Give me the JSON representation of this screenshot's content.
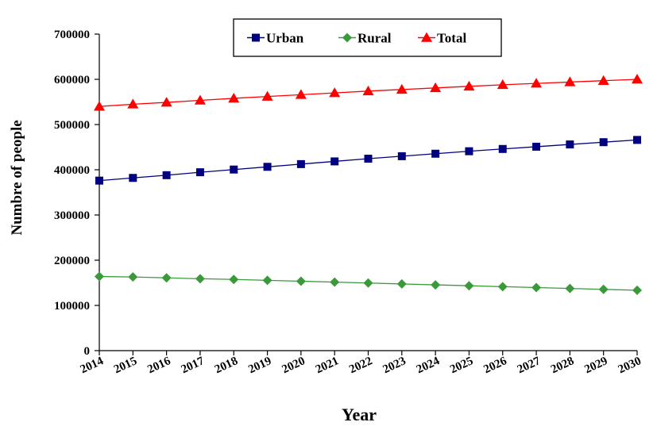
{
  "chart_data": {
    "type": "line",
    "title": "",
    "xlabel": "Year",
    "ylabel": "Numbre of people",
    "x": [
      "2014",
      "2015",
      "2016",
      "2017",
      "2018",
      "2019",
      "2020",
      "2021",
      "2022",
      "2023",
      "2024",
      "2025",
      "2026",
      "2027",
      "2028",
      "2029",
      "2030"
    ],
    "ylim": [
      0,
      700000
    ],
    "yticks": [
      "0",
      "100000",
      "200000",
      "300000",
      "400000",
      "500000",
      "600000",
      "700000"
    ],
    "grid": false,
    "legend_position": "top-center",
    "series": [
      {
        "name": "Urban",
        "color": "#000080",
        "marker": "square",
        "values": [
          376000,
          382000,
          388000,
          394500,
          400500,
          406500,
          412500,
          418500,
          424500,
          430000,
          435500,
          441000,
          446000,
          451000,
          456000,
          461000,
          466000
        ]
      },
      {
        "name": "Rural",
        "color": "#3a9a3a",
        "marker": "diamond",
        "values": [
          164000,
          163000,
          161000,
          159000,
          157500,
          155500,
          153500,
          151500,
          149500,
          147500,
          145500,
          143500,
          141500,
          139500,
          137500,
          135500,
          133500
        ]
      },
      {
        "name": "Total",
        "color": "#ff0000",
        "marker": "triangle",
        "values": [
          540000,
          545000,
          549000,
          553500,
          558000,
          562000,
          566000,
          570000,
          574000,
          577500,
          581000,
          584500,
          588000,
          591000,
          594000,
          597000,
          600000
        ]
      }
    ]
  }
}
